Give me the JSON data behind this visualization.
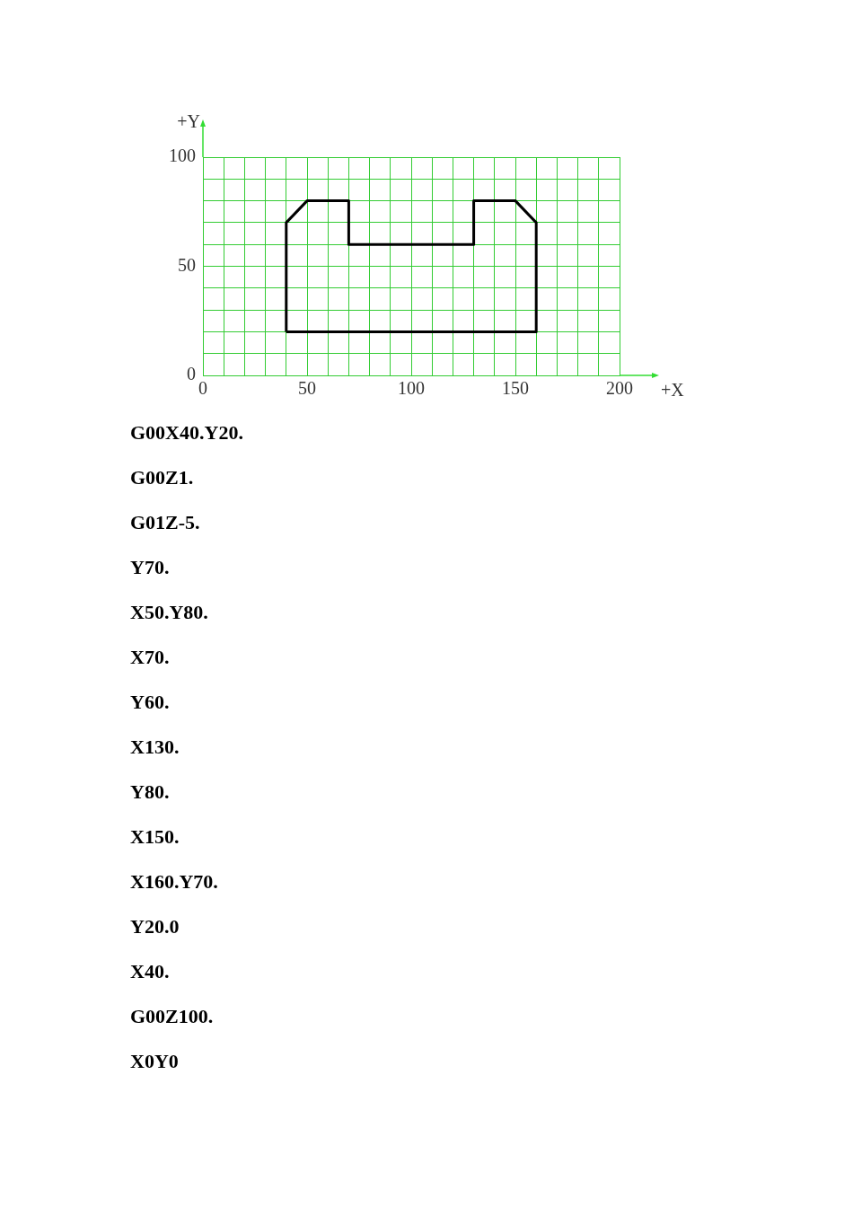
{
  "chart_data": {
    "type": "line",
    "xlabel": "+X",
    "ylabel": "+Y",
    "xlim": [
      0,
      200
    ],
    "ylim": [
      0,
      100
    ],
    "xticks": [
      0,
      {
        "value": 10,
        "label": null
      },
      {
        "value": 20,
        "label": null
      },
      {
        "value": 30,
        "label": null
      },
      {
        "value": 40,
        "label": null
      },
      50,
      {
        "value": 60,
        "label": null
      },
      {
        "value": 70,
        "label": null
      },
      {
        "value": 80,
        "label": null
      },
      {
        "value": 90,
        "label": null
      },
      100,
      {
        "value": 110,
        "label": null
      },
      {
        "value": 120,
        "label": null
      },
      {
        "value": 130,
        "label": null
      },
      {
        "value": 140,
        "label": null
      },
      150,
      {
        "value": 160,
        "label": null
      },
      {
        "value": 170,
        "label": null
      },
      {
        "value": 180,
        "label": null
      },
      {
        "value": 190,
        "label": null
      },
      200
    ],
    "yticks": [
      0,
      {
        "value": 10,
        "label": null
      },
      {
        "value": 20,
        "label": null
      },
      {
        "value": 30,
        "label": null
      },
      {
        "value": 40,
        "label": null
      },
      50,
      {
        "value": 60,
        "label": null
      },
      {
        "value": 70,
        "label": null
      },
      {
        "value": 80,
        "label": null
      },
      {
        "value": 90,
        "label": null
      },
      100
    ],
    "grid": true,
    "marker": "none",
    "line_style": "solid",
    "series": [
      {
        "color": "#000000",
        "x": [
          40,
          40,
          50,
          70,
          70,
          130,
          130,
          150,
          160,
          160
        ],
        "values": [
          20,
          70,
          80,
          80,
          60,
          60,
          80,
          80,
          70,
          20
        ]
      },
      {
        "color": "#000000",
        "x": [
          40,
          160
        ],
        "values": [
          20,
          20
        ]
      }
    ],
    "annotations": [
      "G00X40.Y20.",
      "G00Z1.",
      "G01Z-5.",
      "Y70.",
      "X50.Y80.",
      "X70.",
      "Y60.",
      "X130.",
      "Y80.",
      "X150.",
      "X160.Y70.",
      "Y20.0",
      "X40.",
      "G00Z100.",
      "X0Y0"
    ]
  }
}
